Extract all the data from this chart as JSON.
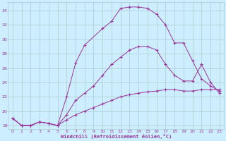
{
  "xlabel": "Windchill (Refroidissement éolien,°C)",
  "bg_color": "#cceeff",
  "grid_color": "#aacccc",
  "line_color": "#993399",
  "xlim": [
    -0.5,
    23.5
  ],
  "ylim": [
    17.5,
    35.2
  ],
  "xticks": [
    0,
    1,
    2,
    3,
    4,
    5,
    6,
    7,
    8,
    9,
    10,
    11,
    12,
    13,
    14,
    15,
    16,
    17,
    18,
    19,
    20,
    21,
    22,
    23
  ],
  "yticks": [
    18,
    20,
    22,
    24,
    26,
    28,
    30,
    32,
    34
  ],
  "curve1_x": [
    0,
    1,
    2,
    3,
    4,
    5,
    6,
    7,
    8,
    10,
    11,
    12,
    13,
    14,
    15,
    16,
    17,
    18,
    19,
    20,
    21,
    22,
    23
  ],
  "curve1_y": [
    19.0,
    18.0,
    18.0,
    18.5,
    18.3,
    18.0,
    22.0,
    26.7,
    29.2,
    31.5,
    32.5,
    34.3,
    34.5,
    34.5,
    34.3,
    33.5,
    32.0,
    29.5,
    29.5,
    27.0,
    24.5,
    23.5,
    22.8
  ],
  "curve2_x": [
    0,
    1,
    2,
    3,
    4,
    5,
    6,
    7,
    8,
    9,
    10,
    11,
    12,
    13,
    14,
    15,
    16,
    17,
    18,
    19,
    20,
    21,
    22,
    23
  ],
  "curve2_y": [
    19.0,
    18.0,
    18.0,
    18.5,
    18.3,
    18.0,
    19.5,
    21.5,
    22.5,
    23.5,
    25.0,
    26.5,
    27.5,
    28.5,
    29.0,
    29.0,
    28.5,
    26.5,
    25.0,
    24.2,
    24.2,
    26.5,
    24.0,
    22.5
  ],
  "curve3_x": [
    0,
    1,
    2,
    3,
    4,
    5,
    6,
    7,
    8,
    9,
    10,
    11,
    12,
    13,
    14,
    15,
    16,
    17,
    18,
    19,
    20,
    21,
    22,
    23
  ],
  "curve3_y": [
    19.0,
    18.0,
    18.0,
    18.5,
    18.3,
    18.0,
    18.8,
    19.5,
    20.0,
    20.5,
    21.0,
    21.5,
    22.0,
    22.3,
    22.5,
    22.7,
    22.8,
    23.0,
    23.0,
    22.8,
    22.8,
    23.0,
    23.0,
    23.0
  ]
}
